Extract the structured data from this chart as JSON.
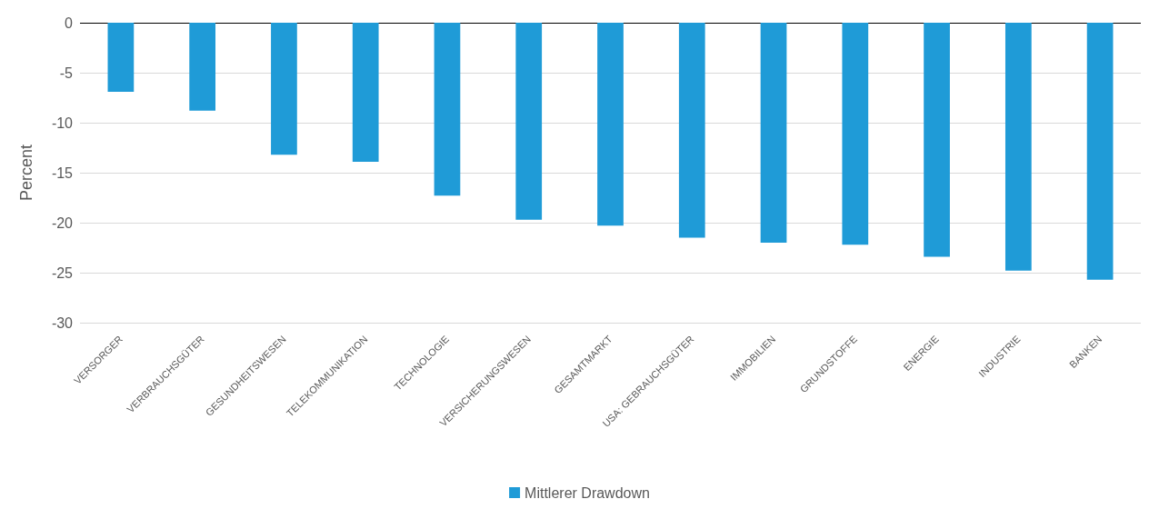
{
  "chart_data": {
    "type": "bar",
    "ylabel": "Percent",
    "categories": [
      "VERSORGER",
      "VERBRAUCHSGÜTER",
      "GESUNDHEITSWESEN",
      "TELEKOMMUNIKATION",
      "TECHNOLOGIE",
      "VERSICHERUNGSWESEN",
      "GESAMTMARKT",
      "USA: GEBRAUCHSGÜTER",
      "IMMOBILIEN",
      "GRUNDSTOFFE",
      "ENERGIE",
      "INDUSTRIE",
      "BANKEN"
    ],
    "series": [
      {
        "name": "Mittlerer Drawdown",
        "color": "#1f9bd7",
        "values": [
          -6.9,
          -8.8,
          -13.2,
          -13.9,
          -17.3,
          -19.7,
          -20.3,
          -21.5,
          -22.0,
          -22.2,
          -23.4,
          -24.8,
          -25.7
        ]
      }
    ],
    "ylim": [
      -30,
      0
    ],
    "yticks": [
      -30,
      -25,
      -20,
      -15,
      -10,
      -5,
      0
    ],
    "grid": "y",
    "legend": "bottom"
  }
}
